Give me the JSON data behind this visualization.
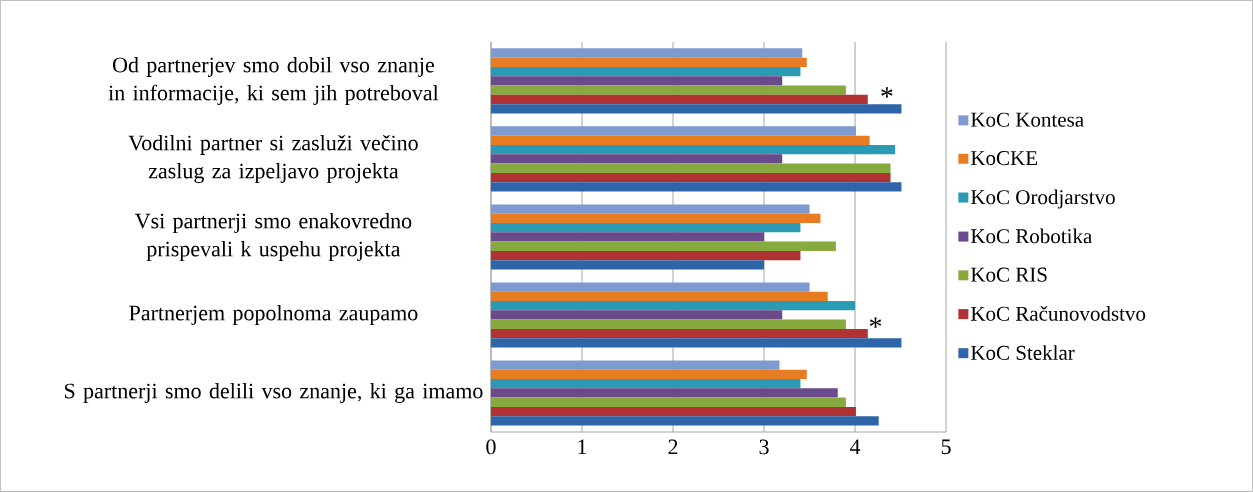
{
  "chart_data": {
    "type": "bar",
    "orientation": "horizontal",
    "categories": [
      "Od partnerjev smo dobil vso znanje in informacije, ki sem jih potreboval",
      "Vodilni partner si zasluži večino zaslug za izpeljavo projekta",
      "Vsi partnerji smo enakovredno prispevali k uspehu projekta",
      "Partnerjem popolnoma zaupamo",
      "S partnerji smo delili vso znanje, ki ga imamo"
    ],
    "series": [
      {
        "name": "KoC Kontesa",
        "color": "#7e9bd1",
        "values": [
          3.42,
          4.01,
          3.5,
          3.5,
          3.17
        ]
      },
      {
        "name": "KoCKE",
        "color": "#e87c22",
        "values": [
          3.47,
          4.16,
          3.62,
          3.7,
          3.47
        ]
      },
      {
        "name": "KoC Orodjarstvo",
        "color": "#2b9ab5",
        "values": [
          3.4,
          4.44,
          3.4,
          4.0,
          3.4
        ]
      },
      {
        "name": "KoC Robotika",
        "color": "#6a4a8a",
        "values": [
          3.2,
          3.2,
          3.0,
          3.2,
          3.81
        ]
      },
      {
        "name": "KoC RIS",
        "color": "#86aa3d",
        "values": [
          3.9,
          4.39,
          3.79,
          3.9,
          3.9
        ]
      },
      {
        "name": "KoC Računovodstvo",
        "color": "#b03232",
        "values": [
          4.14,
          4.39,
          3.4,
          4.14,
          4.01
        ]
      },
      {
        "name": "KoC Steklar",
        "color": "#2e64a8",
        "values": [
          4.51,
          4.51,
          3.0,
          4.51,
          4.26
        ]
      }
    ],
    "xlim": [
      0,
      5
    ],
    "xticks": [
      0,
      1,
      2,
      3,
      4,
      5
    ],
    "grid": "x",
    "legend": "right",
    "annotations": [
      "*",
      "*"
    ]
  }
}
